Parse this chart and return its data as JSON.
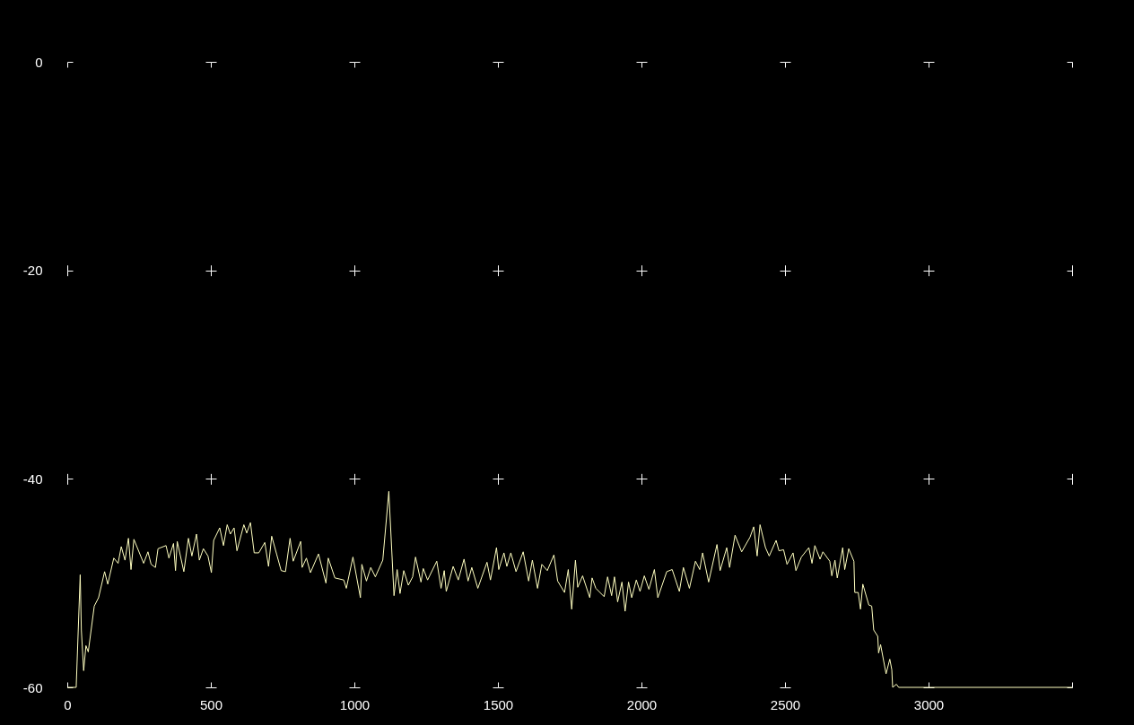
{
  "chart_data": {
    "type": "line",
    "xlim": [
      0,
      3500
    ],
    "ylim": [
      -60,
      0
    ],
    "xticks": [
      0,
      500,
      1000,
      1500,
      2000,
      2500,
      3000,
      {
        "value": 3500,
        "label": null
      }
    ],
    "yticks": [
      0,
      -20,
      -40,
      -60
    ],
    "grid": true,
    "marker": "none",
    "line_style": "solid",
    "x": [
      0,
      31,
      45,
      49,
      57,
      65,
      73,
      94,
      109,
      130,
      141,
      162,
      177,
      188,
      201,
      213,
      222,
      232,
      266,
      281,
      292,
      307,
      316,
      344,
      354,
      370,
      377,
      383,
      406,
      422,
      434,
      450,
      460,
      474,
      490,
      502,
      510,
      531,
      544,
      557,
      568,
      581,
      591,
      615,
      625,
      638,
      651,
      667,
      688,
      701,
      712,
      729,
      745,
      760,
      776,
      787,
      813,
      818,
      833,
      847,
      875,
      901,
      909,
      932,
      963,
      972,
      995,
      1021,
      1026,
      1042,
      1057,
      1073,
      1099,
      1120,
      1138,
      1149,
      1159,
      1172,
      1188,
      1203,
      1213,
      1232,
      1240,
      1255,
      1287,
      1302,
      1313,
      1320,
      1344,
      1362,
      1382,
      1396,
      1409,
      1430,
      1462,
      1474,
      1495,
      1503,
      1521,
      1531,
      1545,
      1563,
      1588,
      1607,
      1620,
      1638,
      1653,
      1672,
      1695,
      1708,
      1732,
      1745,
      1757,
      1770,
      1778,
      1795,
      1820,
      1828,
      1841,
      1870,
      1882,
      1896,
      1906,
      1917,
      1932,
      1943,
      1955,
      1966,
      1982,
      1995,
      2010,
      2026,
      2045,
      2057,
      2088,
      2107,
      2132,
      2146,
      2167,
      2188,
      2203,
      2213,
      2234,
      2263,
      2274,
      2297,
      2307,
      2326,
      2349,
      2378,
      2391,
      2403,
      2413,
      2432,
      2445,
      2469,
      2479,
      2495,
      2507,
      2528,
      2538,
      2557,
      2583,
      2594,
      2604,
      2622,
      2632,
      2656,
      2663,
      2674,
      2682,
      2701,
      2708,
      2722,
      2740,
      2743,
      2755,
      2763,
      2771,
      2792,
      2802,
      2809,
      2823,
      2826,
      2833,
      2852,
      2865,
      2872,
      2875,
      2888,
      2896,
      3500
    ],
    "series": [
      {
        "color": "#ffffc0",
        "values": [
          -60,
          -60,
          -49.2,
          -54.5,
          -58.4,
          -56,
          -56.6,
          -52.2,
          -51.4,
          -48.9,
          -50.1,
          -47.6,
          -48.1,
          -46.5,
          -47.8,
          -45.7,
          -48.7,
          -45.8,
          -48.1,
          -47,
          -48.2,
          -48.5,
          -46.7,
          -46.4,
          -47.6,
          -46.2,
          -48.8,
          -46,
          -48.9,
          -45.7,
          -47.4,
          -45.3,
          -47.8,
          -46.7,
          -47.4,
          -49,
          -45.9,
          -44.7,
          -46.4,
          -44.4,
          -45.3,
          -44.7,
          -46.9,
          -44.4,
          -45.2,
          -44.2,
          -47.1,
          -47.1,
          -46.1,
          -48.4,
          -45.5,
          -47.2,
          -48.8,
          -48.9,
          -45.7,
          -47.9,
          -46,
          -48.5,
          -47.6,
          -49,
          -47.2,
          -50,
          -47.6,
          -49.5,
          -49.7,
          -50.5,
          -47.5,
          -51.4,
          -48.2,
          -49.8,
          -48.5,
          -49.4,
          -47.8,
          -41.2,
          -51.2,
          -48.7,
          -51,
          -48.8,
          -50.2,
          -49.4,
          -47.5,
          -49.9,
          -48.6,
          -49.7,
          -47.9,
          -50.5,
          -48.8,
          -50.8,
          -48.4,
          -49.7,
          -47.7,
          -49.8,
          -48.5,
          -50.5,
          -48,
          -49.7,
          -46.6,
          -48.7,
          -47.1,
          -48.4,
          -47.1,
          -48.9,
          -47,
          -49.8,
          -47.8,
          -50.5,
          -48.2,
          -48.8,
          -47.3,
          -49.8,
          -50.9,
          -48.7,
          -52.5,
          -47.8,
          -50.4,
          -49.3,
          -51.4,
          -49.5,
          -50.5,
          -51.3,
          -49.4,
          -51.2,
          -49.4,
          -51.8,
          -49.9,
          -52.7,
          -49.9,
          -51.4,
          -49.7,
          -50.8,
          -49.3,
          -50.6,
          -48.7,
          -51.4,
          -48.9,
          -48.7,
          -50.8,
          -48.5,
          -50.5,
          -47.9,
          -48.7,
          -47.1,
          -49.9,
          -46.3,
          -48.8,
          -46.6,
          -48.5,
          -45.4,
          -47,
          -45.6,
          -44.6,
          -47.4,
          -44.4,
          -46.6,
          -47.4,
          -45.9,
          -46.9,
          -46.8,
          -48.2,
          -47.1,
          -48.8,
          -47.5,
          -46.6,
          -48.1,
          -46.4,
          -47.7,
          -47,
          -47.9,
          -49.3,
          -47.8,
          -49.5,
          -46.6,
          -48.7,
          -46.7,
          -47.9,
          -50.9,
          -50.9,
          -52.5,
          -50.1,
          -52.1,
          -52.2,
          -54.5,
          -55.1,
          -56.7,
          -55.9,
          -58.7,
          -57.3,
          -58.3,
          -60,
          -59.7,
          -60,
          -60
        ]
      }
    ]
  }
}
